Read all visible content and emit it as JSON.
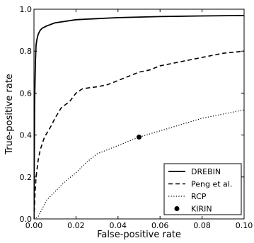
{
  "chart_data": {
    "type": "line",
    "xlabel": "False-positive rate",
    "ylabel": "True-positive rate",
    "xlim": [
      0.0,
      0.1
    ],
    "ylim": [
      0.0,
      1.0
    ],
    "xticks": [
      "0.00",
      "0.02",
      "0.04",
      "0.06",
      "0.08",
      "0.10"
    ],
    "yticks": [
      "0.0",
      "0.2",
      "0.4",
      "0.6",
      "0.8",
      "1.0"
    ],
    "grid": false,
    "legend_position": "bottom-right",
    "series": [
      {
        "name": "DREBIN",
        "style": "solid",
        "x": [
          0.0,
          0.0003,
          0.0007,
          0.001,
          0.0015,
          0.002,
          0.003,
          0.004,
          0.006,
          0.01,
          0.02,
          0.04,
          0.06,
          0.08,
          0.1
        ],
        "y": [
          0.0,
          0.55,
          0.75,
          0.83,
          0.86,
          0.88,
          0.9,
          0.91,
          0.92,
          0.935,
          0.95,
          0.96,
          0.965,
          0.968,
          0.97
        ]
      },
      {
        "name": "Peng et al.",
        "style": "dashed",
        "x": [
          0.0,
          0.0005,
          0.001,
          0.002,
          0.003,
          0.005,
          0.008,
          0.01,
          0.013,
          0.017,
          0.02,
          0.023,
          0.026,
          0.03,
          0.035,
          0.04,
          0.045,
          0.05,
          0.055,
          0.06,
          0.07,
          0.08,
          0.09,
          0.1
        ],
        "y": [
          0.0,
          0.12,
          0.2,
          0.28,
          0.33,
          0.39,
          0.44,
          0.48,
          0.53,
          0.56,
          0.6,
          0.62,
          0.625,
          0.63,
          0.64,
          0.66,
          0.68,
          0.7,
          0.71,
          0.73,
          0.75,
          0.77,
          0.79,
          0.8
        ]
      },
      {
        "name": "RCP",
        "style": "dotted",
        "x": [
          0.0,
          0.002,
          0.004,
          0.006,
          0.01,
          0.015,
          0.02,
          0.025,
          0.03,
          0.035,
          0.04,
          0.045,
          0.05,
          0.06,
          0.07,
          0.08,
          0.09,
          0.1
        ],
        "y": [
          0.0,
          0.01,
          0.05,
          0.09,
          0.13,
          0.18,
          0.22,
          0.27,
          0.31,
          0.33,
          0.35,
          0.37,
          0.39,
          0.42,
          0.45,
          0.48,
          0.5,
          0.52
        ]
      },
      {
        "name": "KIRIN",
        "style": "marker",
        "x": [
          0.05
        ],
        "y": [
          0.39
        ]
      }
    ]
  }
}
